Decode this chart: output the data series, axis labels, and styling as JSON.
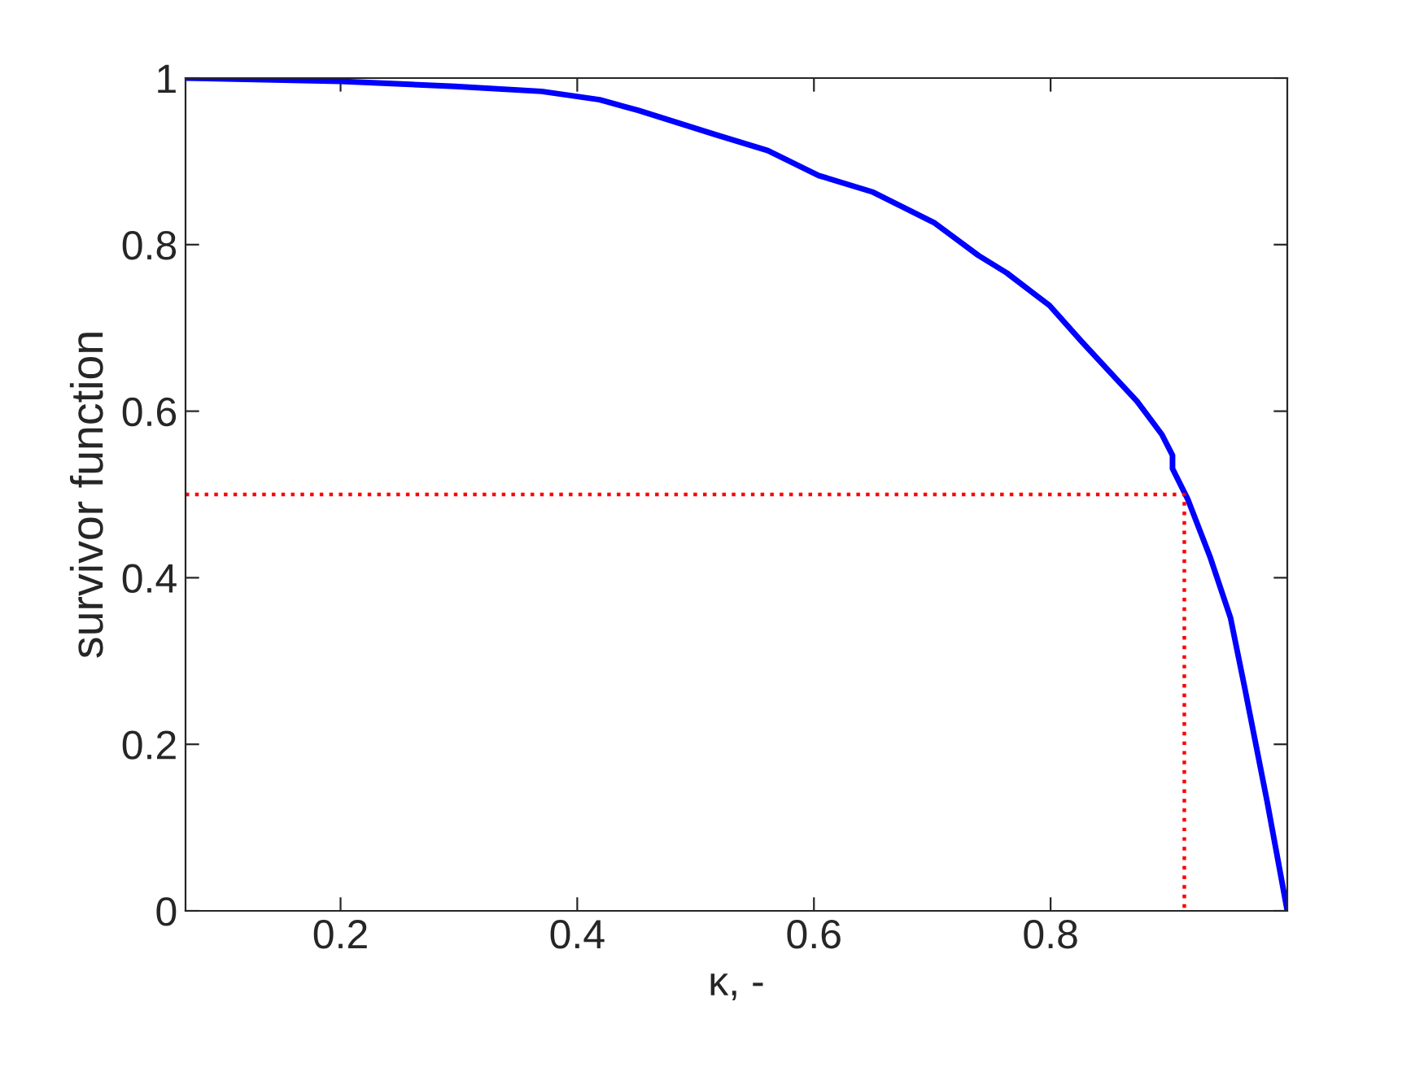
{
  "chart_data": {
    "type": "line",
    "xlabel": "κ, -",
    "ylabel": "survivor function",
    "xlim": [
      0.069,
      1.0
    ],
    "xticks": [
      0.2,
      0.4,
      0.6,
      0.8
    ],
    "ylim": [
      0,
      1
    ],
    "yticks": [
      0,
      0.2,
      0.4,
      0.6,
      0.8,
      1
    ],
    "grid": false,
    "legend": false,
    "series": [
      {
        "color": "#0000ff",
        "line_style": "solid",
        "x": [
          0.069,
          0.2,
          0.297,
          0.37,
          0.419,
          0.452,
          0.517,
          0.561,
          0.604,
          0.65,
          0.702,
          0.739,
          0.763,
          0.799,
          0.826,
          0.854,
          0.873,
          0.894,
          0.903,
          0.903,
          0.916,
          0.935,
          0.952,
          0.964,
          0.983,
          1.0
        ],
        "values": [
          1.0,
          0.996,
          0.99,
          0.984,
          0.974,
          0.961,
          0.932,
          0.913,
          0.883,
          0.863,
          0.826,
          0.787,
          0.766,
          0.727,
          0.684,
          0.641,
          0.612,
          0.572,
          0.547,
          0.531,
          0.494,
          0.424,
          0.352,
          0.268,
          0.131,
          0
        ]
      },
      {
        "color": "#ff0000",
        "line_style": "dotted",
        "x": [
          0.069,
          0.913,
          0.913
        ],
        "values": [
          0.5,
          0.5,
          0
        ]
      }
    ]
  }
}
